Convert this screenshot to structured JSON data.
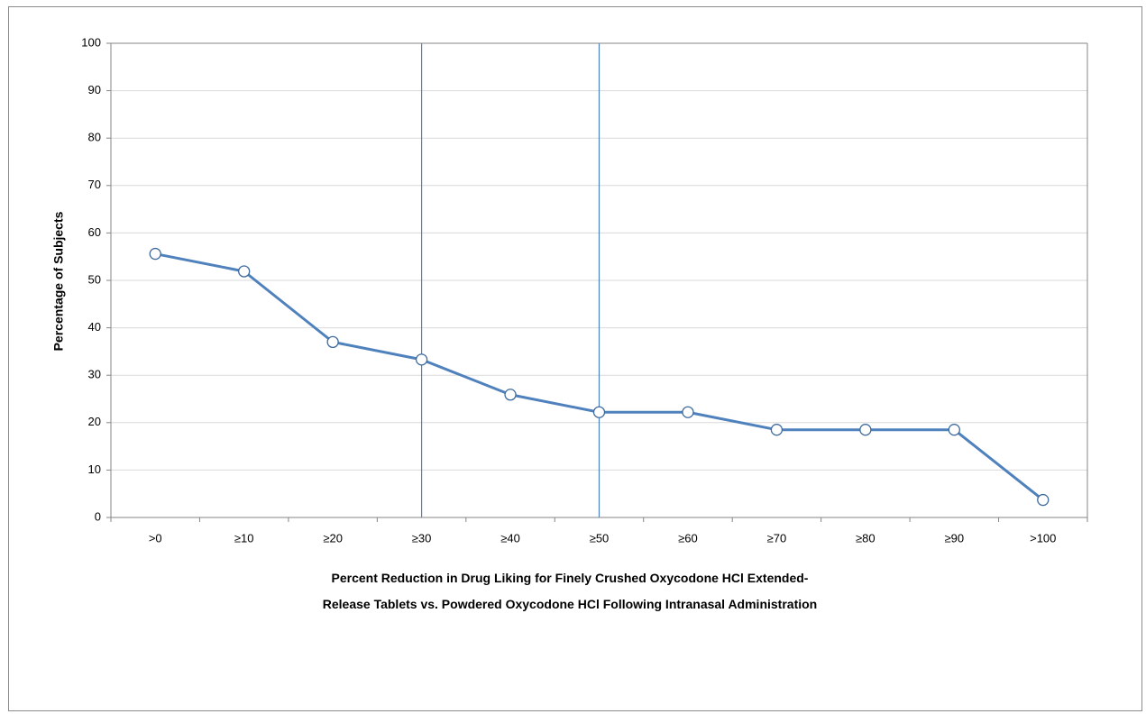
{
  "chart_data": {
    "type": "line",
    "title": "",
    "xlabel": "Percent Reduction in Drug Liking for Finely Crushed Oxycodone HCl Extended-Release Tablets vs. Powdered Oxycodone HCl Following Intranasal Administration",
    "xlabel_lines": [
      "Percent Reduction in Drug Liking for Finely Crushed Oxycodone HCl Extended-",
      "Release Tablets vs. Powdered Oxycodone HCl Following Intranasal Administration"
    ],
    "ylabel": "Percentage of Subjects",
    "ylim": [
      0,
      100
    ],
    "yticks": [
      0,
      10,
      20,
      30,
      40,
      50,
      60,
      70,
      80,
      90,
      100
    ],
    "categories": [
      ">0",
      "≥10",
      "≥20",
      "≥30",
      "≥40",
      "≥50",
      "≥60",
      "≥70",
      "≥80",
      "≥90",
      ">100"
    ],
    "series": [
      {
        "values": [
          55.6,
          51.9,
          37.0,
          33.3,
          25.9,
          22.2,
          22.2,
          18.5,
          18.5,
          18.5,
          3.7
        ]
      }
    ],
    "reference_lines_at_categories": [
      "≥30",
      "≥50"
    ],
    "grid": true,
    "legend": "none",
    "colors": {
      "series": "#4f81bd",
      "reference": "#4f81bd",
      "grid": "#d9d9d9",
      "axis": "#868686"
    }
  }
}
